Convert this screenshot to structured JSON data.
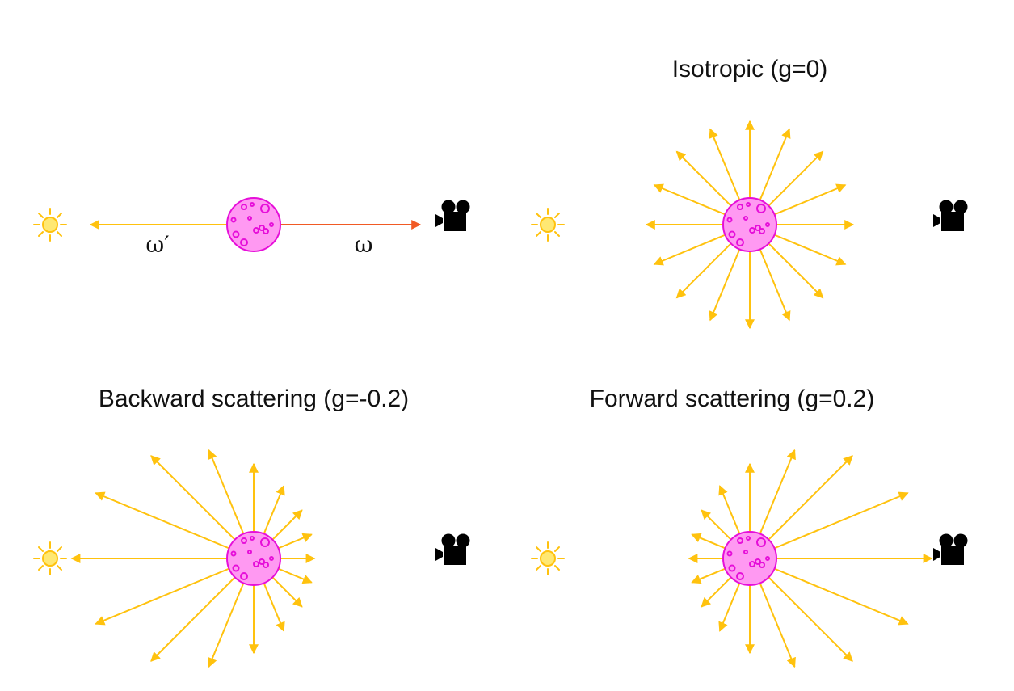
{
  "panels": [
    {
      "id": "single",
      "title": "",
      "incoming_label": "ω′",
      "outgoing_label": "ω",
      "g": null
    },
    {
      "id": "isotropic",
      "title": "Isotropic (g=0)",
      "g": 0
    },
    {
      "id": "backward",
      "title": "Backward scattering (g=-0.2)",
      "g": -0.2
    },
    {
      "id": "forward",
      "title": "Forward scattering (g=0.2)",
      "g": 0.2
    }
  ],
  "arrow_count": 16,
  "icons": {
    "light": "sun-icon",
    "sensor": "camera-icon",
    "medium": "particle-icon"
  },
  "colors": {
    "scatter_arrow": "#FFC20E",
    "outgoing_arrow": "#F15A24",
    "particle_fill": "#FF99F2",
    "particle_stroke": "#E60FD9",
    "sun_fill": "#FFE873",
    "sun_stroke": "#FFC20E",
    "camera": "#000000"
  }
}
